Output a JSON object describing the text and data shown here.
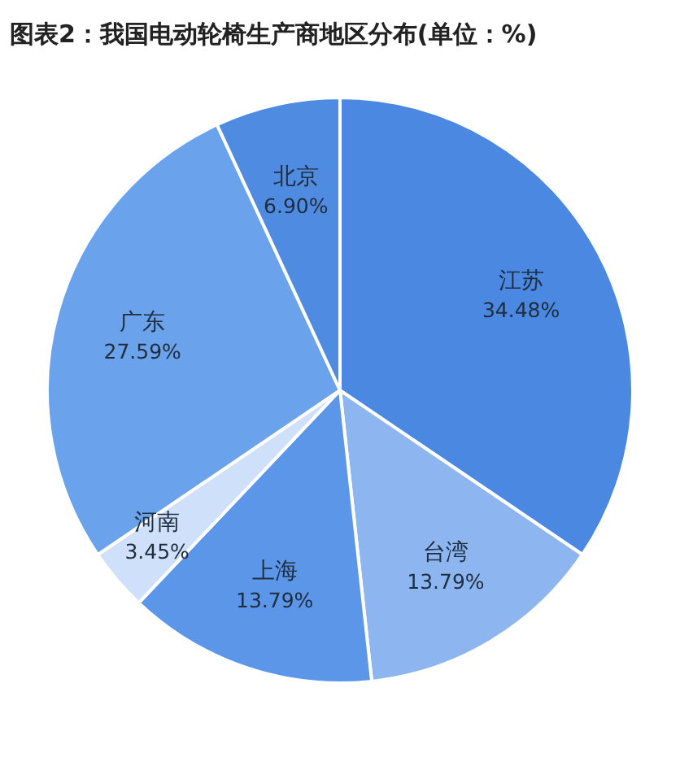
{
  "chart_data": {
    "type": "pie",
    "title": "图表2：我国电动轮椅生产商地区分布(单位：%)",
    "categories": [
      "江苏",
      "台湾",
      "上海",
      "河南",
      "广东",
      "北京"
    ],
    "values": [
      34.48,
      13.79,
      13.79,
      3.45,
      27.59,
      6.9
    ],
    "value_labels": [
      "34.48%",
      "13.79%",
      "13.79%",
      "3.45%",
      "27.59%",
      "6.90%"
    ],
    "colors": [
      "#4a88e2",
      "#8db5f0",
      "#5b96e8",
      "#cfe0fa",
      "#6ba2ec",
      "#4f8be0"
    ]
  }
}
